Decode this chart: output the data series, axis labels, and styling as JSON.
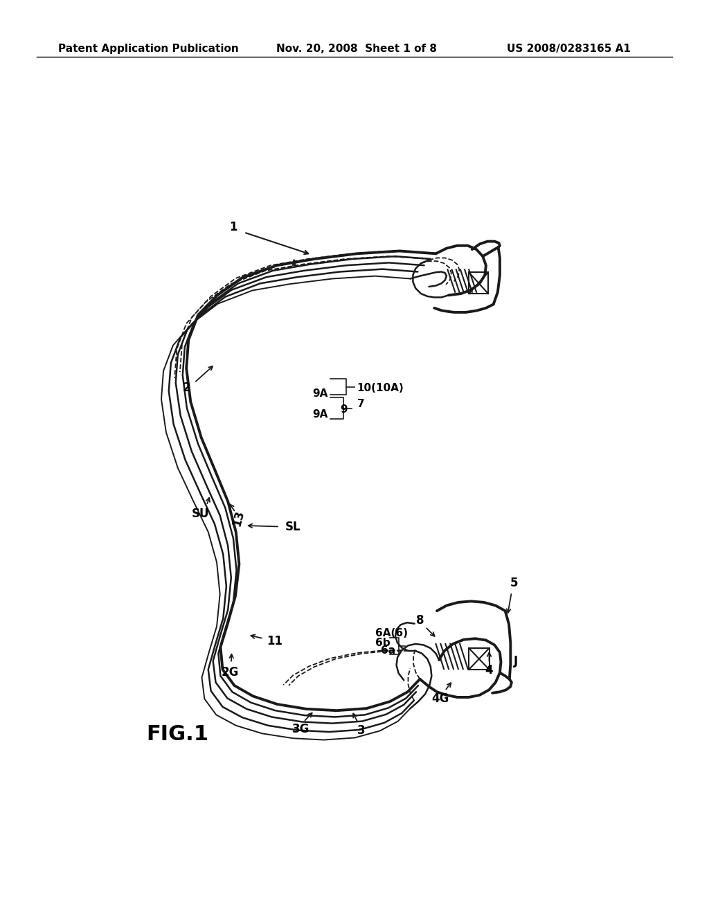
{
  "background_color": "#ffffff",
  "header_left": "Patent Application Publication",
  "header_center": "Nov. 20, 2008  Sheet 1 of 8",
  "header_right": "US 2008/0283165 A1",
  "header_fontsize": 11,
  "figure_label": "FIG.1",
  "figure_label_fontsize": 22,
  "line_color": "#1a1a1a",
  "label_fontsize": 12,
  "label_fontsize_small": 11
}
